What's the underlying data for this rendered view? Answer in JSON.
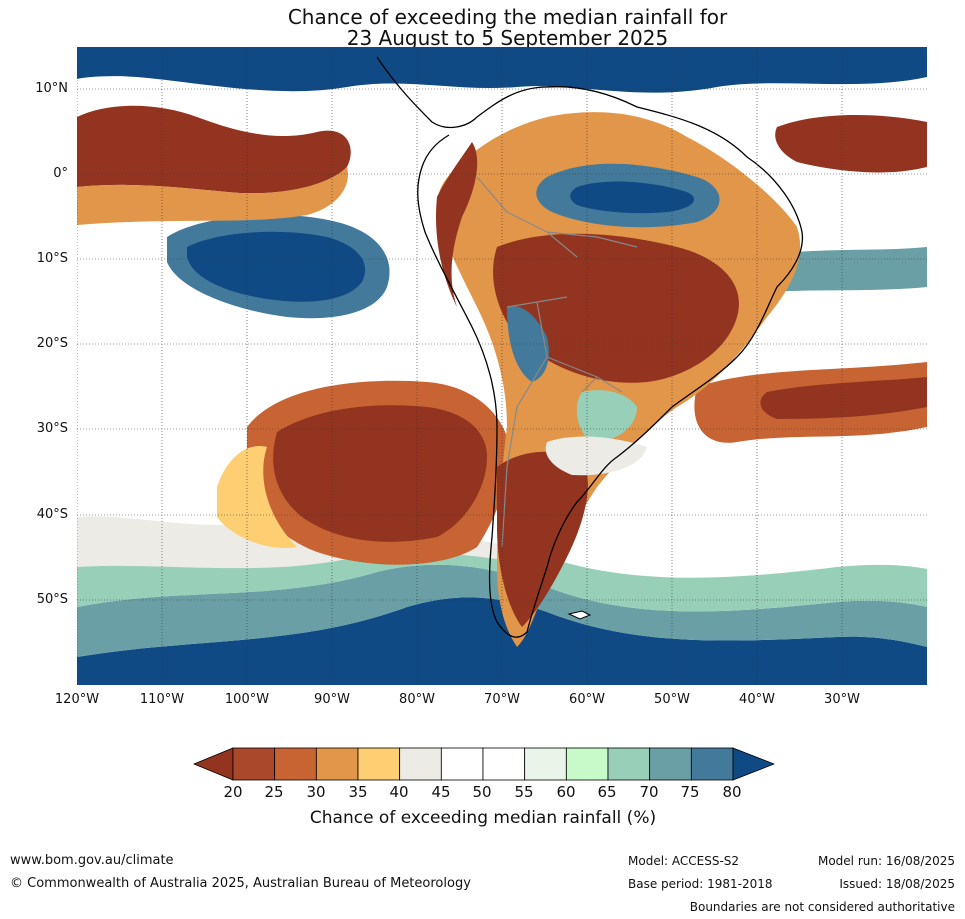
{
  "title": {
    "line1": "Chance of exceeding the median rainfall for",
    "line2": "23 August to 5 September 2025"
  },
  "map": {
    "lat_labels": [
      "10°N",
      "0°",
      "10°S",
      "20°S",
      "30°S",
      "40°S",
      "50°S"
    ],
    "lon_labels": [
      "120°W",
      "110°W",
      "100°W",
      "90°W",
      "80°W",
      "70°W",
      "60°W",
      "50°W",
      "40°W",
      "30°W"
    ],
    "extent": {
      "lon_min": -120,
      "lon_max": -20,
      "lat_min": -60,
      "lat_max": 15
    },
    "ocean_base_color": "#ffffff",
    "coastline_color": "#000000",
    "border_color": "#888888"
  },
  "colorbar": {
    "ticks": [
      "20",
      "25",
      "30",
      "35",
      "40",
      "45",
      "50",
      "55",
      "60",
      "65",
      "70",
      "75",
      "80"
    ],
    "colors": [
      "#933420",
      "#a9482a",
      "#c86434",
      "#e2964a",
      "#fdcf72",
      "#ecebe6",
      "#ffffff",
      "#ffffff",
      "#e8f5e8",
      "#c8f9c8",
      "#98cfb8",
      "#6a9fa6",
      "#437a9c",
      "#0f4a85"
    ],
    "label": "Chance of exceeding median rainfall (%)"
  },
  "footer": {
    "website": "www.bom.gov.au/climate",
    "copyright": "© Commonwealth of Australia 2025, Australian Bureau of Meteorology",
    "model": "Model: ACCESS-S2",
    "base_period": "Base period: 1981-2018",
    "model_run": "Model run: 16/08/2025",
    "issued": "Issued: 18/08/2025",
    "disclaimer": "Boundaries are not considered authoritative"
  }
}
